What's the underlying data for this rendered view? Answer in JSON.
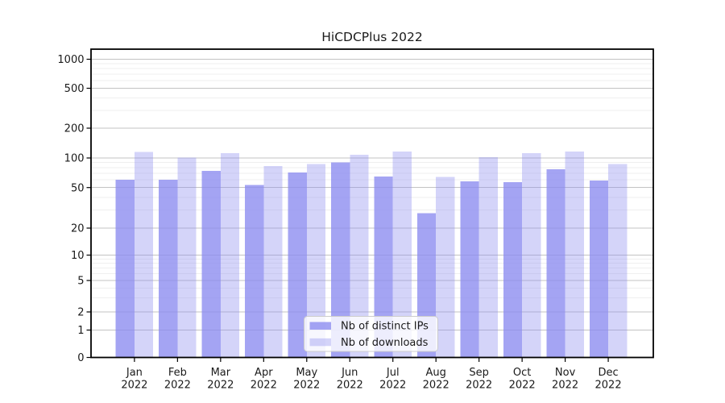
{
  "page": {
    "background": "#ffffff"
  },
  "chart_data": {
    "type": "bar",
    "title": "HiCDCPlus 2022",
    "year": "2022",
    "months": [
      "Jan",
      "Feb",
      "Mar",
      "Apr",
      "May",
      "Jun",
      "Jul",
      "Aug",
      "Sep",
      "Oct",
      "Nov",
      "Dec"
    ],
    "categories": [
      "Jan 2022",
      "Feb 2022",
      "Mar 2022",
      "Apr 2022",
      "May 2022",
      "Jun 2022",
      "Jul 2022",
      "Aug 2022",
      "Sep 2022",
      "Oct 2022",
      "Nov 2022",
      "Dec 2022"
    ],
    "series": [
      {
        "name": "Nb of distinct IPs",
        "color": "#8a8af0",
        "opacity": 0.78,
        "values": [
          60,
          60,
          74,
          53,
          71,
          90,
          65,
          28,
          58,
          57,
          77,
          59
        ]
      },
      {
        "name": "Nb of downloads",
        "color": "#8a8af0",
        "opacity": 0.37,
        "values": [
          115,
          101,
          112,
          83,
          87,
          108,
          116,
          64,
          102,
          112,
          116,
          87
        ]
      }
    ],
    "xlabel": "",
    "ylabel": "",
    "yscale": "symlog",
    "yticks": [
      0,
      1,
      2,
      5,
      10,
      20,
      50,
      100,
      200,
      500,
      1000
    ],
    "minor_yticks": [
      3,
      4,
      6,
      7,
      8,
      9,
      30,
      40,
      60,
      70,
      80,
      90,
      300,
      400,
      600,
      700,
      800,
      900
    ],
    "ylim": [
      0,
      1265
    ],
    "grid": "horizontal major+minor",
    "legend_position": "lower center"
  },
  "colors": {
    "bar_base": "#8a8af0",
    "grid_major": "#c3c3c3",
    "grid_minor": "#efefef",
    "frame": "#000000",
    "text": "#1a1a1a",
    "legend_border": "#cccccc",
    "legend_bg": "#ffffff"
  }
}
